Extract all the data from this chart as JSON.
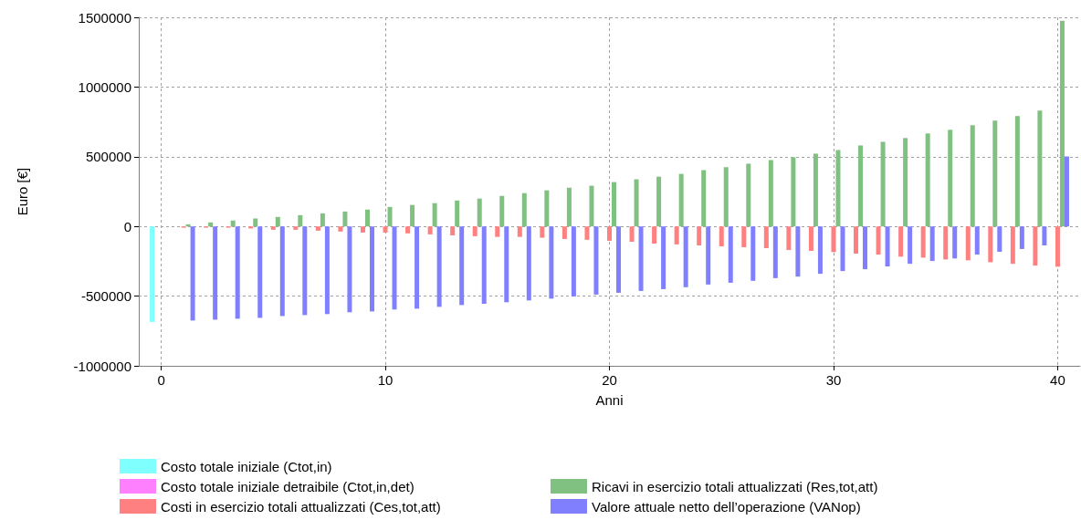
{
  "chart_data": {
    "type": "bar",
    "xlabel": "Anni",
    "ylabel": "Euro [€]",
    "x": [
      0,
      1,
      2,
      3,
      4,
      5,
      6,
      7,
      8,
      9,
      10,
      11,
      12,
      13,
      14,
      15,
      16,
      17,
      18,
      19,
      20,
      21,
      22,
      23,
      24,
      25,
      26,
      27,
      28,
      29,
      30,
      31,
      32,
      33,
      34,
      35,
      36,
      37,
      38,
      39,
      40
    ],
    "xlim": [
      -1,
      41
    ],
    "xticks": [
      0,
      10,
      20,
      30,
      40
    ],
    "ylim": [
      -1000000,
      1500000
    ],
    "yticks": [
      -1000000,
      -500000,
      0,
      500000,
      1000000,
      1500000
    ],
    "grid": true,
    "legend": "bottom",
    "series": [
      {
        "name": "Costo totale iniziale (Ctot,in)",
        "color": "#80ffff",
        "values": [
          -685000,
          null,
          null,
          null,
          null,
          null,
          null,
          null,
          null,
          null,
          null,
          null,
          null,
          null,
          null,
          null,
          null,
          null,
          null,
          null,
          null,
          null,
          null,
          null,
          null,
          null,
          null,
          null,
          null,
          null,
          null,
          null,
          null,
          null,
          null,
          null,
          null,
          null,
          null,
          null,
          null
        ]
      },
      {
        "name": "Costo totale iniziale detraibile (Ctot,in,det)",
        "color": "#ff80ff",
        "values": [
          0,
          null,
          null,
          null,
          null,
          null,
          null,
          null,
          null,
          null,
          null,
          null,
          null,
          null,
          null,
          null,
          null,
          null,
          null,
          null,
          null,
          null,
          null,
          null,
          null,
          null,
          null,
          null,
          null,
          null,
          null,
          null,
          null,
          null,
          null,
          null,
          null,
          null,
          null,
          null,
          null
        ]
      },
      {
        "name": "Costi in esercizio totali attualizzati (Ces,tot,att)",
        "color": "#ff8080",
        "values": [
          null,
          -9000,
          -9000,
          -9000,
          -15000,
          -24000,
          -24000,
          -31000,
          -37000,
          -44000,
          -44000,
          -50000,
          -57000,
          -64000,
          -70000,
          -75000,
          -75000,
          -81000,
          -90000,
          -96000,
          -103000,
          -110000,
          -123000,
          -129000,
          -136000,
          -143000,
          -149000,
          -156000,
          -169000,
          -175000,
          -184000,
          -195000,
          -202000,
          -217000,
          -224000,
          -237000,
          -243000,
          -257000,
          -268000,
          -281000,
          -289000
        ]
      },
      {
        "name": "Ricavi in esercizio totali attualizzati (Res,tot,att)",
        "color": "#80c080",
        "values": [
          null,
          15000,
          29000,
          42000,
          57000,
          68000,
          81000,
          94000,
          107000,
          121000,
          140000,
          154000,
          167000,
          186000,
          200000,
          219000,
          239000,
          259000,
          278000,
          292000,
          318000,
          338000,
          357000,
          377000,
          404000,
          425000,
          450000,
          476000,
          496000,
          522000,
          548000,
          581000,
          607000,
          634000,
          667000,
          693000,
          726000,
          759000,
          792000,
          831000,
          1476000
        ]
      },
      {
        "name": "Valore attuale netto dell’operazione (VANop)",
        "color": "#8080ff",
        "values": [
          null,
          -675000,
          -669000,
          -662000,
          -656000,
          -643000,
          -636000,
          -629000,
          -616000,
          -610000,
          -596000,
          -590000,
          -577000,
          -564000,
          -555000,
          -544000,
          -531000,
          -518000,
          -502000,
          -489000,
          -476000,
          -463000,
          -450000,
          -436000,
          -417000,
          -404000,
          -390000,
          -371000,
          -360000,
          -340000,
          -320000,
          -307000,
          -287000,
          -268000,
          -248000,
          -230000,
          -202000,
          -182000,
          -162000,
          -136000,
          502000
        ]
      }
    ]
  }
}
